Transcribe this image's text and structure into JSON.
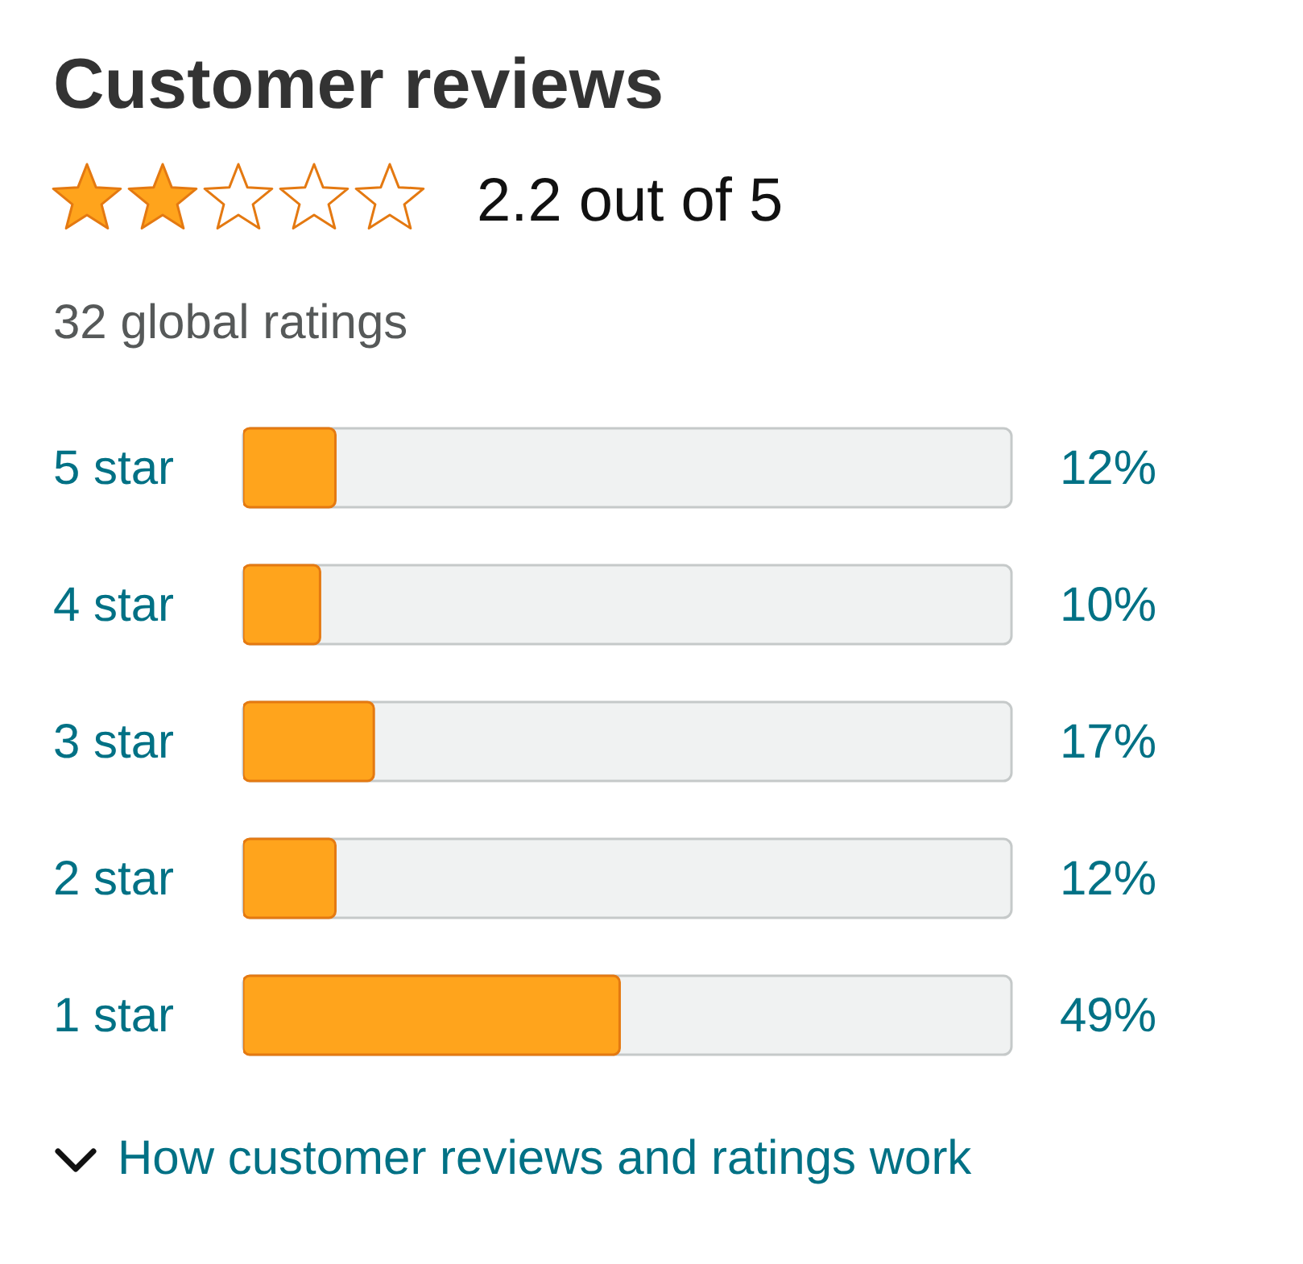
{
  "chart_data": {
    "type": "bar",
    "orientation": "horizontal",
    "title": "Customer reviews",
    "subtitle": "2.2 out of 5",
    "annotations": [
      "32 global ratings",
      "How customer reviews and ratings work"
    ],
    "categories": [
      "5 star",
      "4 star",
      "3 star",
      "2 star",
      "1 star"
    ],
    "values": [
      12,
      10,
      17,
      12,
      49
    ],
    "value_labels": [
      "12%",
      "10%",
      "17%",
      "12%",
      "49%"
    ],
    "color": "#ffa41c",
    "xlim": [
      0,
      100
    ],
    "tick_labels": false,
    "grid": false,
    "legend": false
  }
}
